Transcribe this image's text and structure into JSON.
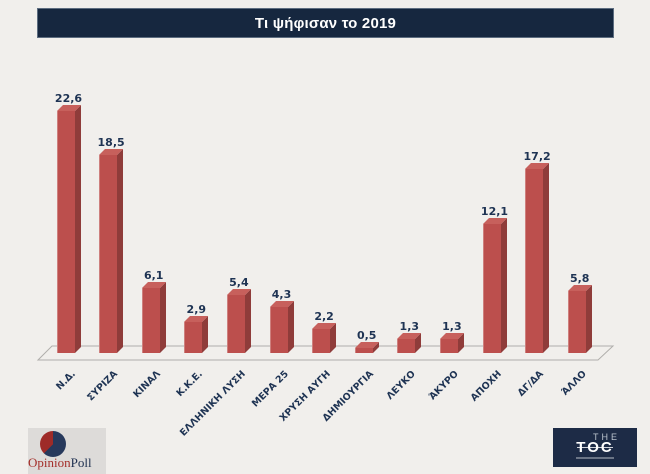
{
  "title": "Τι ψήφισαν το 2019",
  "chart_data": {
    "type": "bar",
    "style": "3d-column",
    "title": "Τι ψήφισαν το 2019",
    "categories": [
      "Ν.Δ.",
      "ΣΥΡΙΖΑ",
      "ΚΙΝΑΛ",
      "Κ.Κ.Ε.",
      "ΕΛΛΗΝΙΚΗ ΛΥΣΗ",
      "ΜΕΡΑ 25",
      "ΧΡΥΣΗ ΑΥΓΗ",
      "ΔΗΜΙΟΥΡΓΙΑ",
      "ΛΕΥΚΟ",
      "ΆΚΥΡΟ",
      "ΑΠΟΧΗ",
      "ΔΓ/ΔΑ",
      "ΆΛΛΟ"
    ],
    "values": [
      22.6,
      18.5,
      6.1,
      2.9,
      5.4,
      4.3,
      2.2,
      0.5,
      1.3,
      1.3,
      12.1,
      17.2,
      5.8
    ],
    "value_labels": [
      "22,6",
      "18,5",
      "6,1",
      "2,9",
      "5,4",
      "4,3",
      "2,2",
      "0,5",
      "1,3",
      "1,3",
      "12,1",
      "17,2",
      "5,8"
    ],
    "ylim": [
      0,
      24
    ],
    "grid": false,
    "legend": false,
    "xlabel": "",
    "ylabel": "",
    "bar_color": "#bc4f4d",
    "bar_side_color": "#8f3c3a",
    "bar_top_color": "#c7605c",
    "value_label_color": "#1e3353",
    "axis_label_color": "#1e3353",
    "floor_line_color": "#b0aeab"
  },
  "branding": {
    "opinionpoll_red": "Opinion",
    "opinionpoll_navy": "Poll",
    "toc_the": "THE",
    "toc_name": "TOC"
  },
  "colors": {
    "page_bg": "#f1efec",
    "title_bar_bg": "#16273f",
    "title_text": "#ffffff"
  }
}
